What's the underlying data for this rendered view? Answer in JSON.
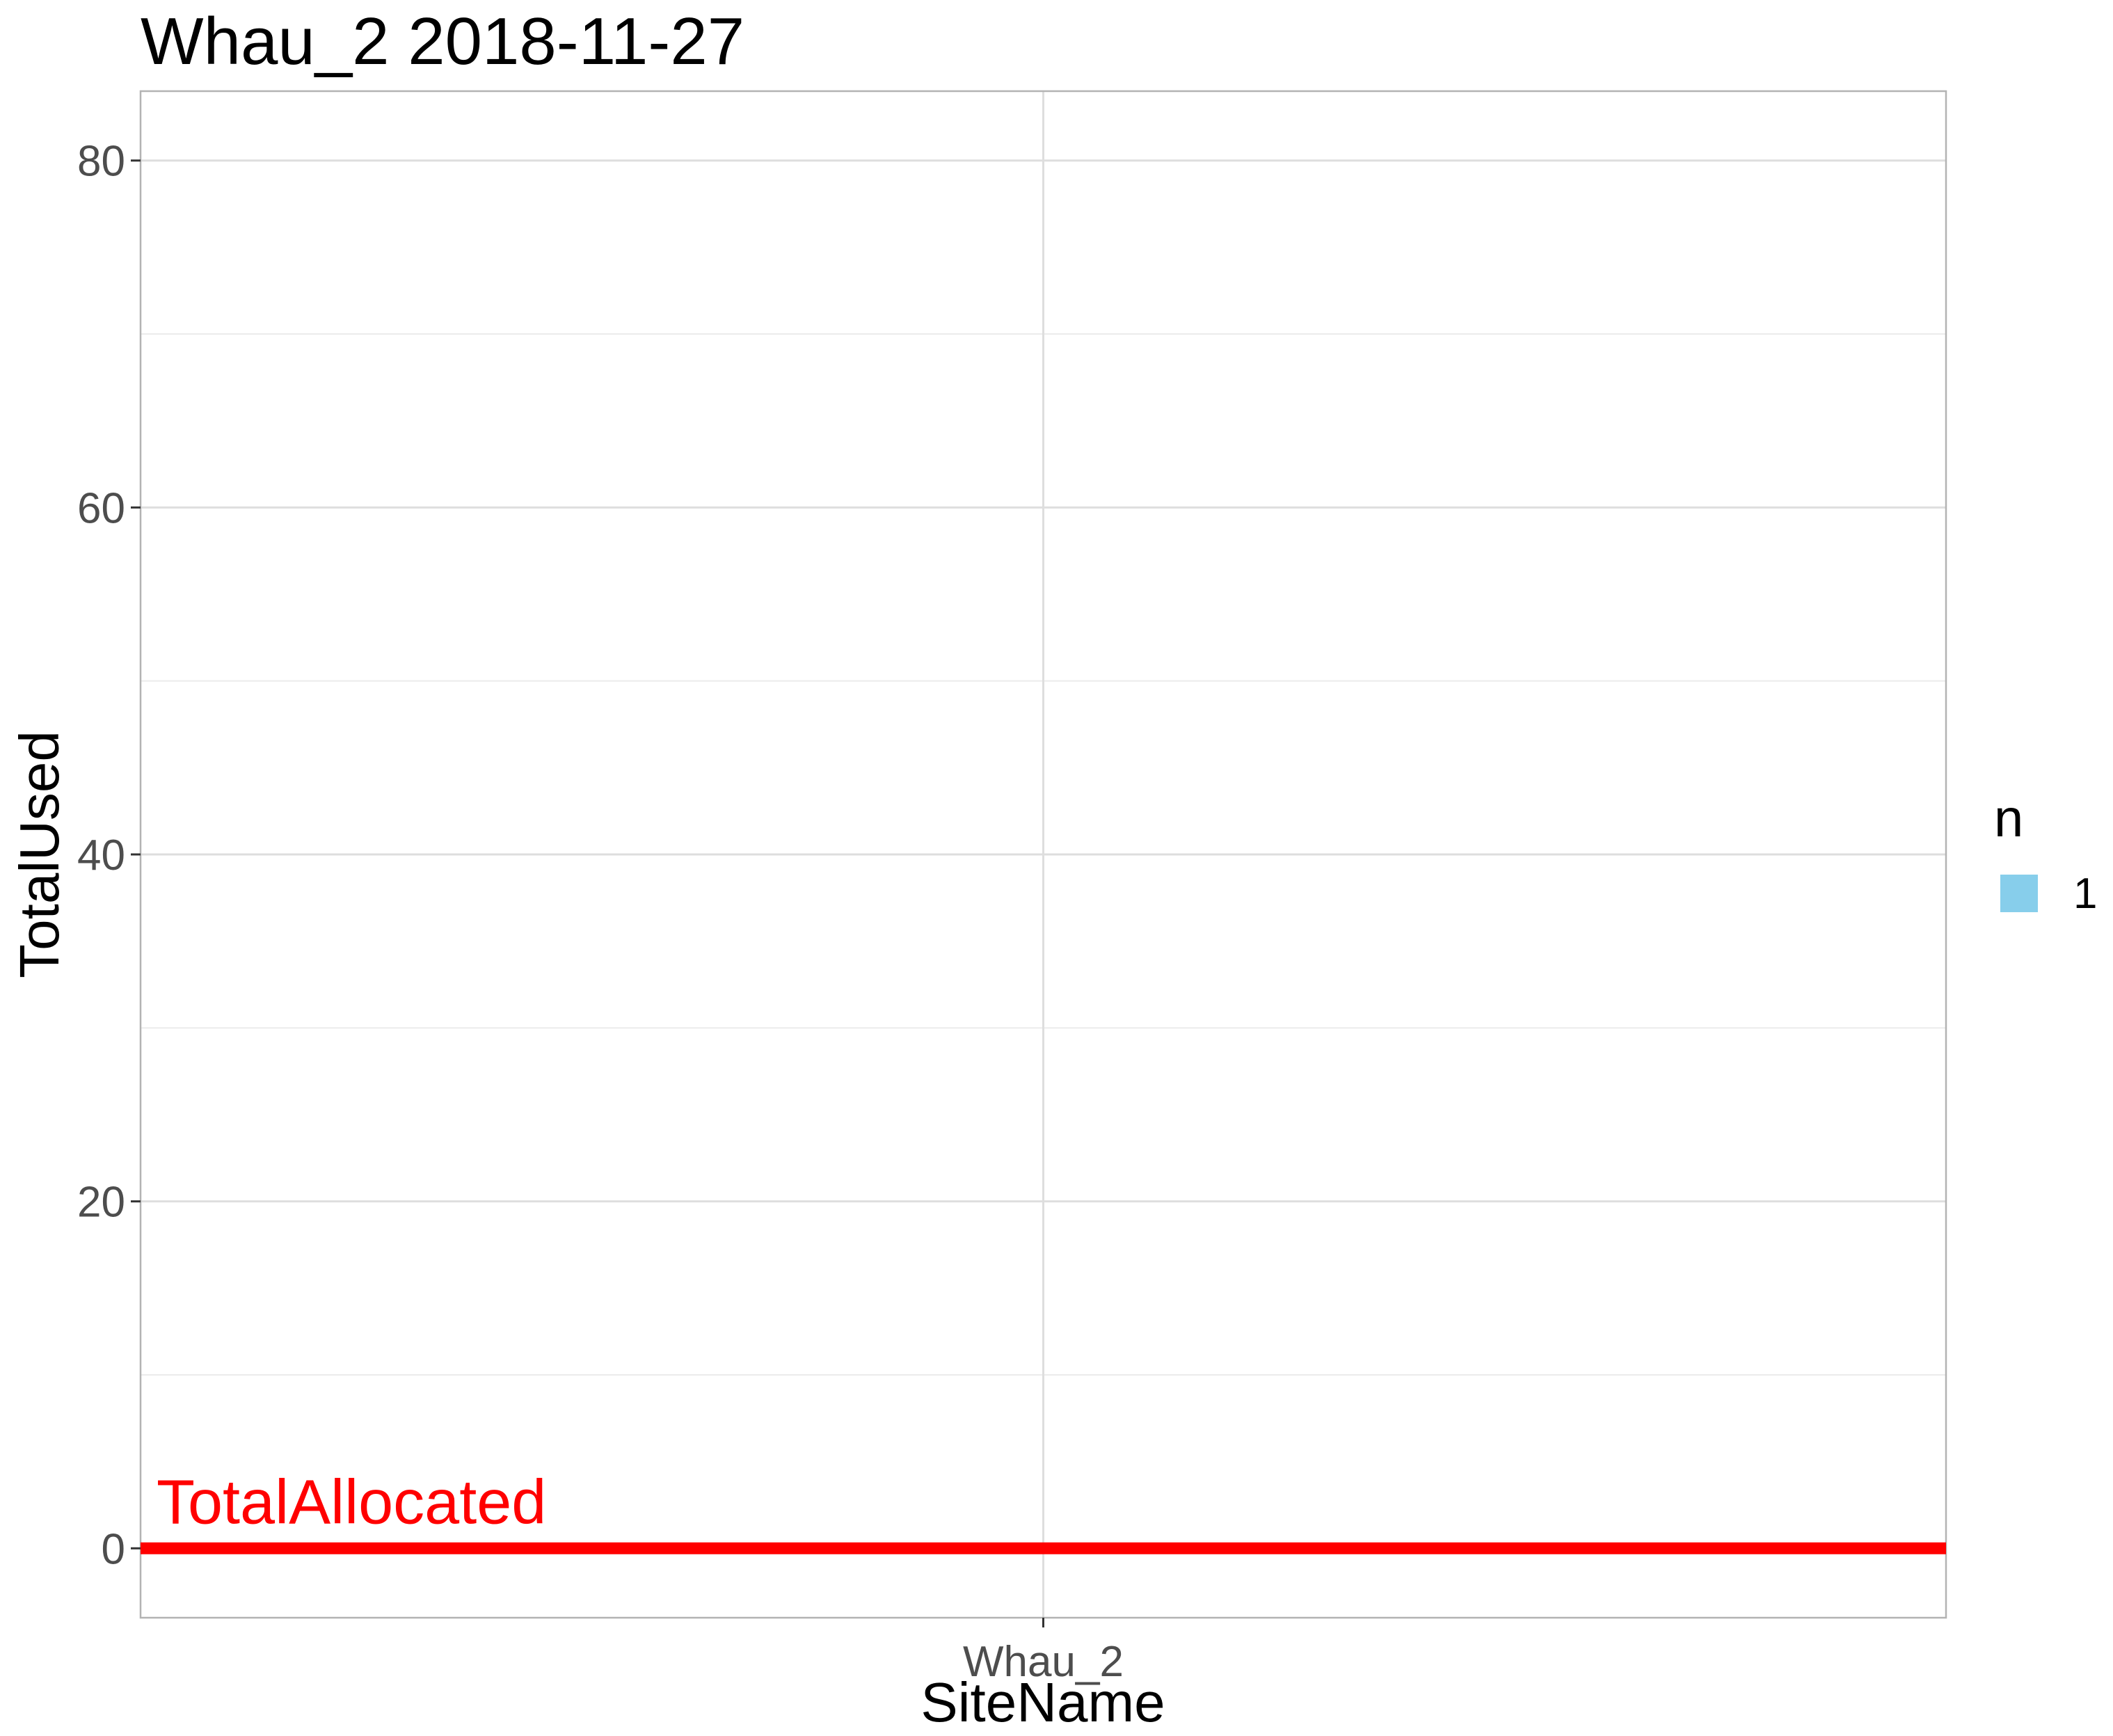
{
  "chart_data": {
    "type": "bar",
    "title": "Whau_2 2018-11-27",
    "xlabel": "SiteName",
    "ylabel": "TotalUsed",
    "categories": [
      "Whau_2"
    ],
    "series": [
      {
        "name": "1",
        "values": [
          0
        ]
      }
    ],
    "ylim": [
      -4,
      84
    ],
    "yticks": [
      0,
      20,
      40,
      60,
      80
    ],
    "ytick_labels": [
      "0",
      "20",
      "40",
      "60",
      "80"
    ],
    "grid": true,
    "reference_line": {
      "value": 0,
      "label": "TotalAllocated",
      "color": "#ff0000"
    },
    "legend": {
      "title": "n",
      "placement": "right",
      "entries": [
        {
          "label": "1",
          "color": "#87ceeb"
        }
      ]
    }
  }
}
